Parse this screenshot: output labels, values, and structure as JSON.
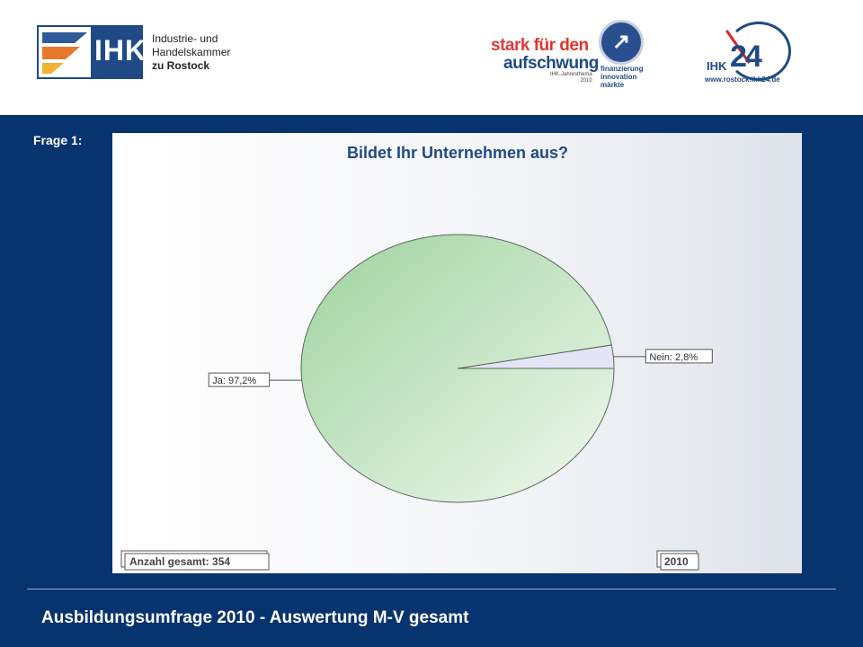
{
  "header": {
    "ihk_logo": {
      "abbr": "IHK",
      "name_line1": "Industrie- und Handelskammer",
      "name_line2": "zu Rostock"
    },
    "campaign_logo": {
      "line1a": "stark",
      "line1b": "für den",
      "line2": "aufschwung",
      "sub1": "IHK-Jahresthema",
      "sub2": "2010",
      "word1": "finanzierung",
      "word2": "innovation",
      "word3": "märkte"
    },
    "ihk24_logo": {
      "small": "IHK",
      "big": "24",
      "url": "www.rostock.ihk24.de"
    }
  },
  "question_label": "Frage 1:",
  "chart_data": {
    "type": "pie",
    "title": "Bildet Ihr Unternehmen aus?",
    "slices": [
      {
        "label": "Ja: 97,2%",
        "value": 97.2,
        "color": "#b8e0b8"
      },
      {
        "label": "Nein: 2,8%",
        "value": 2.8,
        "color": "#e4e4f6"
      }
    ],
    "footnote_left": "Anzahl gesamt: 354",
    "footnote_right": "2010"
  },
  "footer": {
    "title": "Ausbildungsumfrage 2010 - Auswertung M-V gesamt"
  },
  "colors": {
    "background": "#07336e",
    "title_blue": "#1f4a86",
    "accent_red": "#e23a3a"
  }
}
